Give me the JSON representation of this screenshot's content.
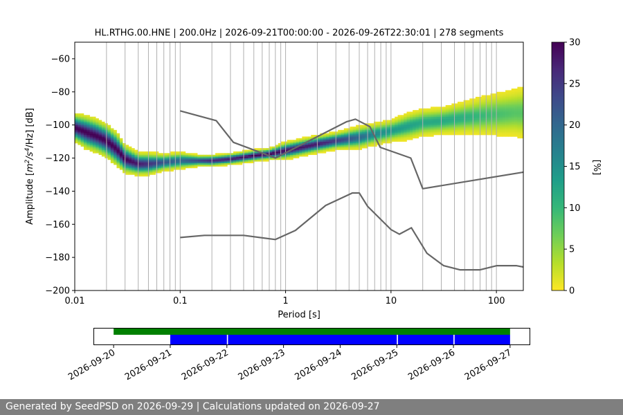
{
  "chart_data": [
    {
      "type": "heatmap",
      "title": "HL.RTHG.00.HNE | 200.0Hz | 2026-09-21T00:00:00 - 2026-09-26T22:30:01 | 278 segments",
      "xlabel": "Period [s]",
      "ylabel_prefix": "Amplitude [",
      "ylabel_m": "m",
      "ylabel_sup1": "2",
      "ylabel_mid": "/s",
      "ylabel_sup2": "4",
      "ylabel_suffix": "/Hz] [dB]",
      "xscale": "log",
      "xlim": [
        0.01,
        180
      ],
      "ylim": [
        -200,
        -50
      ],
      "x_ticks": [
        0.01,
        0.1,
        1,
        10,
        100
      ],
      "x_tick_labels": [
        "0.01",
        "0.1",
        "1",
        "10",
        "100"
      ],
      "y_ticks": [
        -200,
        -180,
        -160,
        -140,
        -120,
        -100,
        -80,
        -60
      ],
      "y_tick_labels": [
        "−200",
        "−180",
        "−160",
        "−140",
        "−120",
        "−100",
        "−80",
        "−60"
      ],
      "grid": true,
      "colorbar": {
        "label": "[%]",
        "range": [
          0,
          30
        ],
        "ticks": [
          0,
          5,
          10,
          15,
          20,
          25,
          30
        ],
        "tick_labels": [
          "0",
          "5",
          "10",
          "15",
          "20",
          "25",
          "30"
        ],
        "colormap": [
          "#fde725",
          "#b5de2b",
          "#6ece58",
          "#35b779",
          "#1f9e89",
          "#26828e",
          "#31688e",
          "#3e4989",
          "#482878",
          "#440154"
        ]
      },
      "density_ridge": {
        "x": [
          0.01,
          0.013,
          0.016,
          0.02,
          0.025,
          0.03,
          0.04,
          0.05,
          0.07,
          0.1,
          0.15,
          0.2,
          0.3,
          0.5,
          0.7,
          1,
          2,
          3,
          5,
          7,
          10,
          15,
          20,
          30,
          50,
          70,
          100,
          150,
          180
        ],
        "y": [
          -102,
          -105,
          -107,
          -110,
          -115,
          -121,
          -124,
          -124,
          -123,
          -122,
          -122,
          -122,
          -121,
          -119,
          -118,
          -116,
          -112,
          -110,
          -108,
          -106,
          -104,
          -101,
          -99,
          -98,
          -96,
          -95,
          -94,
          -93,
          -93
        ],
        "spread": [
          5,
          6,
          6,
          6,
          6,
          5,
          4,
          4,
          3,
          3,
          2,
          2,
          2,
          2,
          2,
          3,
          3,
          3,
          4,
          4,
          4,
          5,
          5,
          5,
          6,
          7,
          8,
          9,
          10
        ],
        "peak_percent": [
          30,
          30,
          30,
          30,
          30,
          30,
          28,
          26,
          22,
          20,
          24,
          27,
          28,
          30,
          30,
          29,
          28,
          25,
          20,
          16,
          14,
          13,
          12,
          12,
          11,
          10,
          9,
          8,
          8
        ]
      },
      "noise_models": [
        {
          "x": [
            0.1,
            0.22,
            0.32,
            0.8,
            3.8,
            4.6,
            6.3,
            7.9,
            15.4,
            20,
            180
          ],
          "y": [
            -91.5,
            -97.4,
            -110.5,
            -120.0,
            -98.0,
            -96.5,
            -101.0,
            -113.5,
            -120.0,
            -138.5,
            -128.5
          ]
        },
        {
          "x": [
            0.1,
            0.17,
            0.4,
            0.8,
            1.24,
            2.4,
            4.3,
            5.0,
            6.0,
            10.0,
            12.0,
            15.6,
            21.9,
            31.6,
            45.0,
            70.0,
            101.0,
            154.0,
            180.0
          ],
          "y": [
            -168.0,
            -166.7,
            -166.7,
            -169.2,
            -163.7,
            -148.6,
            -141.1,
            -141.1,
            -149.2,
            -163.2,
            -166.0,
            -162.1,
            -177.5,
            -185.0,
            -187.5,
            -187.5,
            -185.0,
            -185.0,
            -185.8
          ]
        }
      ]
    },
    {
      "type": "timeline",
      "x_tick_labels": [
        "2026-09-20",
        "2026-09-21",
        "2026-09-22",
        "2026-09-23",
        "2026-09-24",
        "2026-09-25",
        "2026-09-26",
        "2026-09-27"
      ],
      "xlim_days": [
        -0.35,
        7.35
      ],
      "data_available": [
        [
          0.0,
          7.0
        ]
      ],
      "psd_segments": [
        [
          1.0,
          2.0
        ],
        [
          2.02,
          5.0
        ],
        [
          5.02,
          6.0
        ],
        [
          6.02,
          7.0
        ]
      ],
      "colors": {
        "available": "#008000",
        "segments": "#0000ff"
      }
    }
  ],
  "footer": {
    "text": "Generated by SeedPSD on 2026-09-29 | Calculations updated on 2026-09-27"
  }
}
